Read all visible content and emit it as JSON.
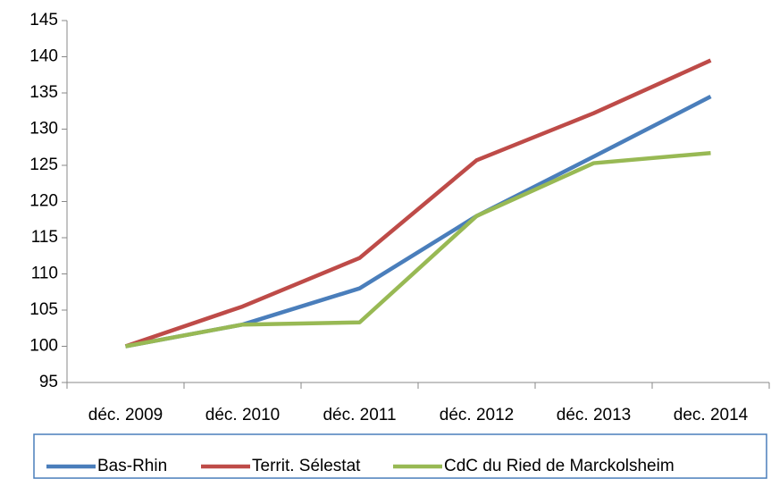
{
  "chart_data": {
    "type": "line",
    "categories": [
      "déc. 2009",
      "déc. 2010",
      "déc. 2011",
      "déc. 2012",
      "déc. 2013",
      "dec. 2014"
    ],
    "series": [
      {
        "name": "Bas-Rhin",
        "color": "#4a7ebb",
        "values": [
          100,
          103,
          108,
          118,
          126.2,
          134.5
        ]
      },
      {
        "name": "Territ. Sélestat",
        "color": "#be4b48",
        "values": [
          100,
          105.5,
          112.2,
          125.7,
          132.2,
          139.5
        ]
      },
      {
        "name": "CdC du Ried de Marckolsheim",
        "color": "#98b954",
        "values": [
          100,
          103,
          103.3,
          118,
          125.3,
          126.7
        ]
      }
    ],
    "ylim": [
      95,
      145
    ],
    "yticks": [
      95,
      100,
      105,
      110,
      115,
      120,
      125,
      130,
      135,
      140,
      145
    ],
    "grid": false,
    "legend": "bottom"
  }
}
